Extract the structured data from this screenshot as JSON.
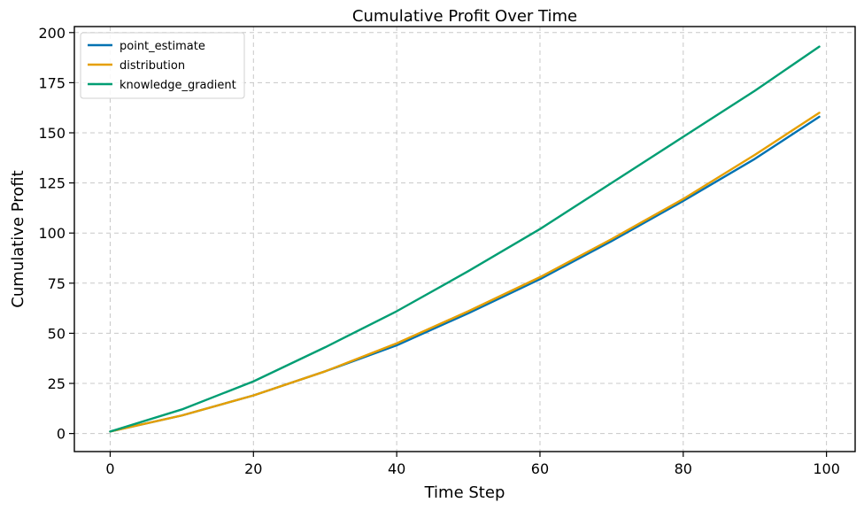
{
  "chart_data": {
    "type": "line",
    "title": "Cumulative Profit Over Time",
    "xlabel": "Time Step",
    "ylabel": "Cumulative Profit",
    "xlim": [
      -5,
      104
    ],
    "ylim": [
      -9,
      203
    ],
    "xticks": [
      0,
      20,
      40,
      60,
      80,
      100
    ],
    "yticks": [
      0,
      25,
      50,
      75,
      100,
      125,
      150,
      175,
      200
    ],
    "grid": true,
    "legend_position": "top-left",
    "x": [
      0,
      10,
      20,
      30,
      40,
      50,
      60,
      70,
      80,
      90,
      99
    ],
    "series": [
      {
        "name": "point_estimate",
        "color": "#0072B2",
        "values": [
          1,
          9,
          19,
          31,
          44,
          60,
          77,
          96,
          116,
          137,
          158
        ]
      },
      {
        "name": "distribution",
        "color": "#E69F00",
        "values": [
          1,
          9,
          19,
          31,
          45,
          61,
          78,
          97,
          117,
          139,
          160
        ]
      },
      {
        "name": "knowledge_gradient",
        "color": "#009E73",
        "values": [
          1,
          12,
          26,
          43,
          61,
          81,
          102,
          125,
          148,
          171,
          193
        ]
      }
    ]
  }
}
